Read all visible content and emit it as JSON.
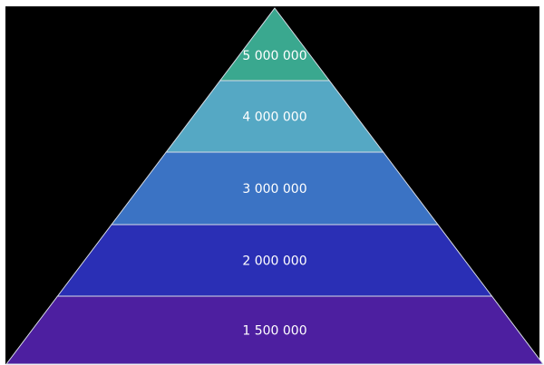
{
  "pyramid": {
    "tiers": [
      {
        "label": "5 000 000",
        "color": "#3aa88f"
      },
      {
        "label": "4 000 000",
        "color": "#55a8c4"
      },
      {
        "label": "3 000 000",
        "color": "#3b73c4"
      },
      {
        "label": "2 000 000",
        "color": "#2a2fb5"
      },
      {
        "label": "1 500 000",
        "color": "#4d1fa0"
      }
    ]
  }
}
